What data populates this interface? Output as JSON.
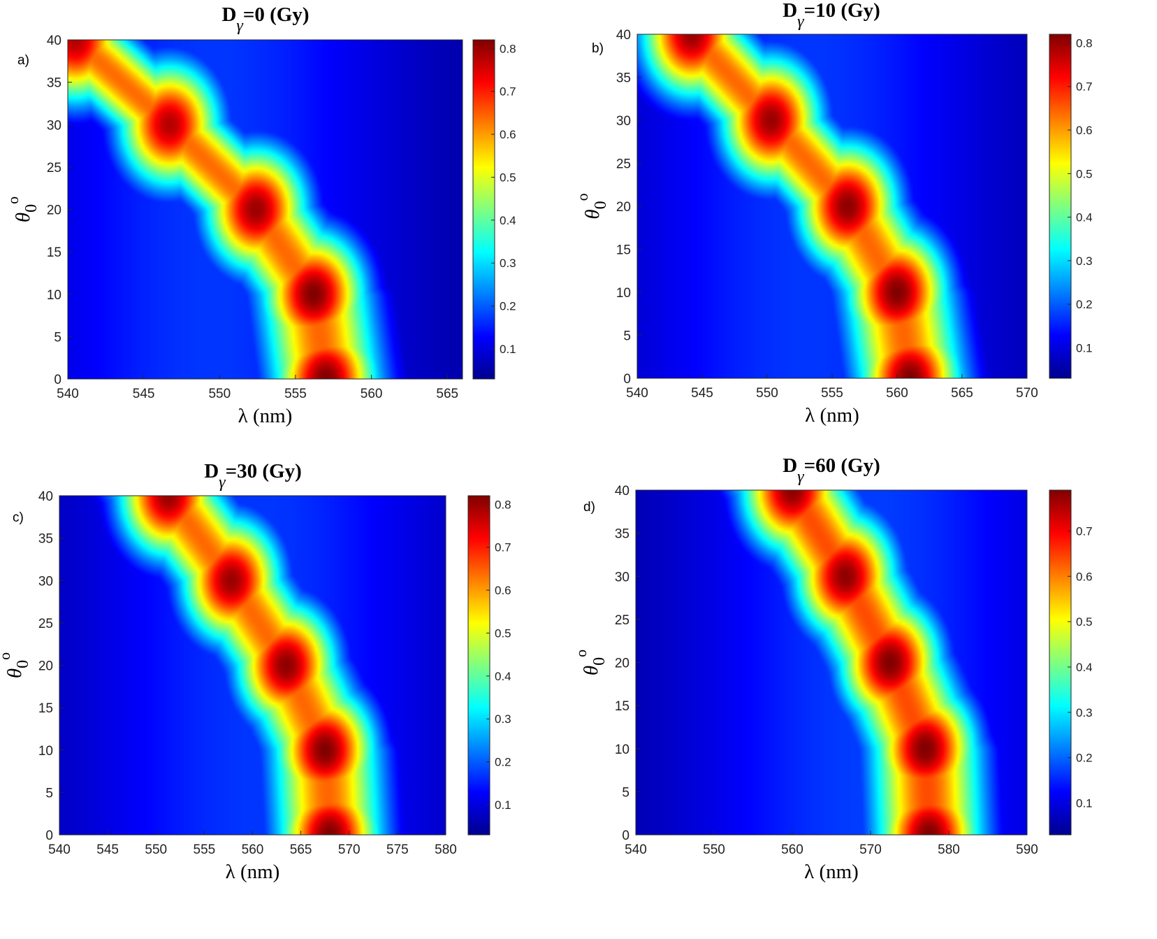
{
  "chart_data": [
    {
      "type": "heatmap",
      "panel_label": "a)",
      "title": {
        "main": "D",
        "sub": "γ",
        "rest": "=0 (Gy)"
      },
      "xlabel": "λ (nm)",
      "ylabel": {
        "main": "θ",
        "sub": "0",
        "sup": "o"
      },
      "xlim": [
        540,
        566
      ],
      "ylim": [
        0,
        40
      ],
      "xticks": [
        "540",
        "545",
        "550",
        "555",
        "560",
        "565"
      ],
      "yticks": [
        "0",
        "5",
        "10",
        "15",
        "20",
        "25",
        "30",
        "35",
        "40"
      ],
      "colorbar": {
        "min": 0.03,
        "max": 0.82,
        "ticks": [
          "0.1",
          "0.2",
          "0.3",
          "0.4",
          "0.5",
          "0.6",
          "0.7",
          "0.8"
        ]
      },
      "peaks": [
        {
          "theta": 40,
          "lambda": 540.5,
          "value": 0.78
        },
        {
          "theta": 30,
          "lambda": 546.7,
          "value": 0.78
        },
        {
          "theta": 20,
          "lambda": 552.4,
          "value": 0.8
        },
        {
          "theta": 10,
          "lambda": 556.2,
          "value": 0.82
        },
        {
          "theta": 0,
          "lambda": 557.0,
          "value": 0.82
        }
      ]
    },
    {
      "type": "heatmap",
      "panel_label": "b)",
      "title": {
        "main": "D",
        "sub": "γ",
        "rest": "=10 (Gy)"
      },
      "xlabel": "λ (nm)",
      "ylabel": {
        "main": "θ",
        "sub": "0",
        "sup": "o"
      },
      "xlim": [
        540,
        570
      ],
      "ylim": [
        0,
        40
      ],
      "xticks": [
        "540",
        "545",
        "550",
        "555",
        "560",
        "565",
        "570"
      ],
      "yticks": [
        "0",
        "5",
        "10",
        "15",
        "20",
        "25",
        "30",
        "35",
        "40"
      ],
      "colorbar": {
        "min": 0.03,
        "max": 0.82,
        "ticks": [
          "0.1",
          "0.2",
          "0.3",
          "0.4",
          "0.5",
          "0.6",
          "0.7",
          "0.8"
        ]
      },
      "peaks": [
        {
          "theta": 40,
          "lambda": 544.2,
          "value": 0.8
        },
        {
          "theta": 30,
          "lambda": 550.3,
          "value": 0.8
        },
        {
          "theta": 20,
          "lambda": 556.2,
          "value": 0.81
        },
        {
          "theta": 10,
          "lambda": 560.0,
          "value": 0.82
        },
        {
          "theta": 0,
          "lambda": 561.0,
          "value": 0.82
        }
      ]
    },
    {
      "type": "heatmap",
      "panel_label": "c)",
      "title": {
        "main": "D",
        "sub": "γ",
        "rest": "=30 (Gy)"
      },
      "xlabel": "λ (nm)",
      "ylabel": {
        "main": "θ",
        "sub": "0",
        "sup": "o"
      },
      "xlim": [
        540,
        580
      ],
      "ylim": [
        0,
        40
      ],
      "xticks": [
        "540",
        "545",
        "550",
        "555",
        "560",
        "565",
        "570",
        "575",
        "580"
      ],
      "yticks": [
        "0",
        "5",
        "10",
        "15",
        "20",
        "25",
        "30",
        "35",
        "40"
      ],
      "colorbar": {
        "min": 0.03,
        "max": 0.82,
        "ticks": [
          "0.1",
          "0.2",
          "0.3",
          "0.4",
          "0.5",
          "0.6",
          "0.7",
          "0.8"
        ]
      },
      "peaks": [
        {
          "theta": 40,
          "lambda": 551.3,
          "value": 0.8
        },
        {
          "theta": 30,
          "lambda": 557.8,
          "value": 0.8
        },
        {
          "theta": 20,
          "lambda": 563.5,
          "value": 0.81
        },
        {
          "theta": 10,
          "lambda": 567.5,
          "value": 0.82
        },
        {
          "theta": 0,
          "lambda": 568.0,
          "value": 0.82
        }
      ]
    },
    {
      "type": "heatmap",
      "panel_label": "d)",
      "title": {
        "main": "D",
        "sub": "γ",
        "rest": "=60 (Gy)"
      },
      "xlabel": "λ (nm)",
      "ylabel": {
        "main": "θ",
        "sub": "0",
        "sup": "o"
      },
      "xlim": [
        540,
        590
      ],
      "ylim": [
        0,
        40
      ],
      "xticks": [
        "540",
        "550",
        "560",
        "570",
        "580",
        "590"
      ],
      "yticks": [
        "0",
        "5",
        "10",
        "15",
        "20",
        "25",
        "30",
        "35",
        "40"
      ],
      "colorbar": {
        "min": 0.03,
        "max": 0.79,
        "ticks": [
          "0.1",
          "0.2",
          "0.3",
          "0.4",
          "0.5",
          "0.6",
          "0.7"
        ]
      },
      "peaks": [
        {
          "theta": 40,
          "lambda": 560.0,
          "value": 0.78
        },
        {
          "theta": 30,
          "lambda": 566.8,
          "value": 0.78
        },
        {
          "theta": 20,
          "lambda": 572.5,
          "value": 0.79
        },
        {
          "theta": 10,
          "lambda": 577.0,
          "value": 0.79
        },
        {
          "theta": 0,
          "lambda": 577.5,
          "value": 0.79
        }
      ]
    }
  ],
  "colormap": [
    "#00008f",
    "#0000ff",
    "#00ffff",
    "#ffff00",
    "#ff0000",
    "#800000"
  ]
}
